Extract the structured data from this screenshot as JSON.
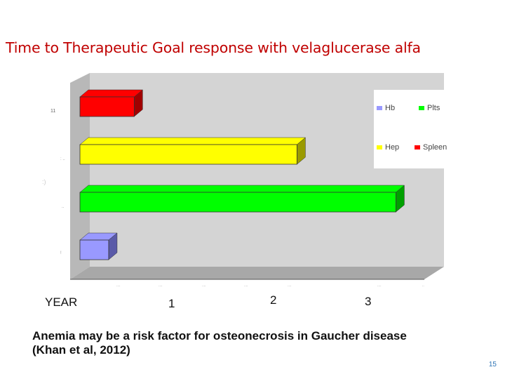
{
  "slide": {
    "title": "Time to Therapeutic Goal response with velaglucerase alfa",
    "note_line1": "Anemia may be a risk factor for osteonecrosis in Gaucher disease",
    "note_line2": "(Khan et al, 2012)",
    "page_number": "15"
  },
  "timeline": {
    "year_label": "YEAR",
    "years": [
      "1",
      "2",
      "3"
    ]
  },
  "chart_data": {
    "type": "bar",
    "orientation": "horizontal",
    "style": "3d",
    "categories": [
      "Spleen",
      "Hep",
      "Plts",
      "Hb"
    ],
    "values": [
      0.85,
      3.4,
      4.95,
      0.45
    ],
    "colors": [
      "#ff0000",
      "#ffff00",
      "#00ff00",
      "#9999ff"
    ],
    "side_colors": [
      "#a00000",
      "#9a9a00",
      "#00a000",
      "#5a5aa8"
    ],
    "legend": [
      {
        "label": "Hb",
        "color": "#9999ff"
      },
      {
        "label": "Plts",
        "color": "#00ff00"
      },
      {
        "label": "Hep",
        "color": "#ffff00"
      },
      {
        "label": "Spleen",
        "color": "#ff0000"
      }
    ],
    "legend_position": "top-right",
    "xlim": [
      0,
      5.5
    ],
    "grid": false,
    "floor_color": "#c0c0c0",
    "wall_color": "#d4d4d4"
  }
}
